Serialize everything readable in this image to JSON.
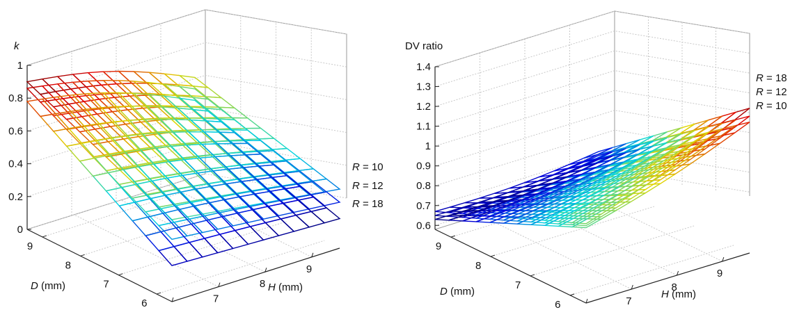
{
  "chart_data": [
    {
      "type": "surface",
      "zlabel": "k",
      "xlabel": {
        "var": "H",
        "unit": " (mm)"
      },
      "ylabel": {
        "var": "D",
        "unit": " (mm)"
      },
      "x_ticks": [
        "6",
        "7",
        "8",
        "9"
      ],
      "y_ticks": [
        "6",
        "7",
        "8",
        "9"
      ],
      "z_ticks": [
        "0",
        "0.2",
        "0.4",
        "0.6",
        "0.8",
        "1"
      ],
      "zlim": [
        0,
        1
      ],
      "xlim": [
        6,
        9.6
      ],
      "ylim": [
        5.6,
        9.4
      ],
      "colormap": "jet",
      "grid": true,
      "series": [
        {
          "name": "R = 10",
          "var": "R",
          "rest": " = 10",
          "corners": {
            "H6_D9.4": 0.9,
            "H6_D5.6": 0.5,
            "H9.6_D9.4": 0.6,
            "H9.6_D5.6": 0.36
          }
        },
        {
          "name": "R = 12",
          "var": "R",
          "rest": " = 12",
          "corners": {
            "H6_D9.4": 0.86,
            "H6_D5.6": 0.38,
            "H9.6_D9.4": 0.53,
            "H9.6_D5.6": 0.28
          }
        },
        {
          "name": "R = 18",
          "var": "R",
          "rest": " = 18",
          "corners": {
            "H6_D9.4": 0.78,
            "H6_D5.6": 0.22,
            "H9.6_D9.4": 0.46,
            "H9.6_D5.6": 0.18
          }
        }
      ]
    },
    {
      "type": "surface",
      "zlabel": "DV ratio",
      "xlabel": {
        "var": "H",
        "unit": " (mm)"
      },
      "ylabel": {
        "var": "D",
        "unit": " (mm)"
      },
      "x_ticks": [
        "6",
        "7",
        "8",
        "9"
      ],
      "y_ticks": [
        "6",
        "7",
        "8",
        "9"
      ],
      "z_ticks": [
        "0.6",
        "0.7",
        "0.8",
        "0.9",
        "1",
        "1.1",
        "1.2",
        "1.3",
        "1.4"
      ],
      "zlim": [
        0.58,
        1.4
      ],
      "xlim": [
        6,
        9.6
      ],
      "ylim": [
        5.6,
        9.4
      ],
      "colormap": "jet",
      "grid": true,
      "series": [
        {
          "name": "R = 18",
          "var": "R",
          "rest": " = 18",
          "corners": {
            "H6_D9.4": 0.67,
            "H6_D5.6": 0.98,
            "H9.6_D9.4": 0.72,
            "H9.6_D5.6": 1.31
          }
        },
        {
          "name": "R = 12",
          "var": "R",
          "rest": " = 12",
          "corners": {
            "H6_D9.4": 0.65,
            "H6_D5.6": 0.97,
            "H9.6_D9.4": 0.7,
            "H9.6_D5.6": 1.27
          }
        },
        {
          "name": "R = 10",
          "var": "R",
          "rest": " = 10",
          "corners": {
            "H6_D9.4": 0.63,
            "H6_D5.6": 0.96,
            "H9.6_D9.4": 0.68,
            "H9.6_D5.6": 1.24
          }
        }
      ]
    }
  ]
}
